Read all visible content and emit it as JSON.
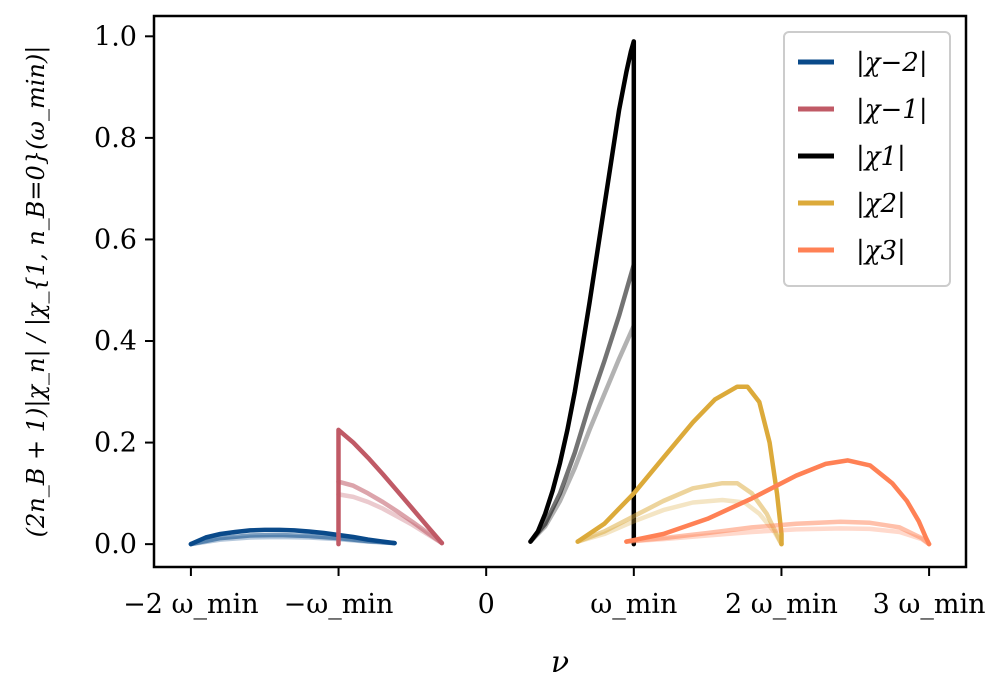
{
  "chart_data": {
    "type": "line",
    "xlabel": "ν",
    "ylabel": "(2n_B + 1)|χ_n| / |χ_{1, n_B=0}(ω_min)|",
    "xlim": [
      -2.25,
      3.25
    ],
    "ylim": [
      -0.045,
      1.04
    ],
    "x_ticks": [
      {
        "value": -2,
        "label": "−2 ω_min"
      },
      {
        "value": -1,
        "label": "−ω_min"
      },
      {
        "value": 0,
        "label": "0"
      },
      {
        "value": 1,
        "label": "ω_min"
      },
      {
        "value": 2,
        "label": "2 ω_min"
      },
      {
        "value": 3,
        "label": "3 ω_min"
      }
    ],
    "y_ticks": [
      {
        "value": 0.0,
        "label": "0.0"
      },
      {
        "value": 0.2,
        "label": "0.2"
      },
      {
        "value": 0.4,
        "label": "0.4"
      },
      {
        "value": 0.6,
        "label": "0.6"
      },
      {
        "value": 0.8,
        "label": "0.8"
      },
      {
        "value": 1.0,
        "label": "1.0"
      }
    ],
    "legend": {
      "location": "top-right",
      "entries": [
        {
          "label": "|χ−2|",
          "color": "#0a4a8a"
        },
        {
          "label": "|χ−1|",
          "color": "#c05a66"
        },
        {
          "label": "|χ1|",
          "color": "#000000"
        },
        {
          "label": "|χ2|",
          "color": "#dcaa3a"
        },
        {
          "label": "|χ3|",
          "color": "#ff8155"
        }
      ]
    },
    "series": [
      {
        "name": "chi_-2 (main)",
        "color": "#0a4a8a",
        "opacity": 1.0,
        "x": [
          -2.0,
          -1.9,
          -1.8,
          -1.7,
          -1.6,
          -1.5,
          -1.4,
          -1.3,
          -1.2,
          -1.1,
          -1.0,
          -0.9,
          -0.8,
          -0.7,
          -0.62
        ],
        "y": [
          0.0,
          0.013,
          0.02,
          0.024,
          0.027,
          0.028,
          0.028,
          0.027,
          0.025,
          0.022,
          0.018,
          0.014,
          0.009,
          0.005,
          0.002
        ]
      },
      {
        "name": "chi_-2 (mid)",
        "color": "#0a4a8a",
        "opacity": 0.55,
        "x": [
          -2.0,
          -1.8,
          -1.6,
          -1.4,
          -1.2,
          -1.0,
          -0.8,
          -0.62
        ],
        "y": [
          0.0,
          0.012,
          0.017,
          0.018,
          0.016,
          0.012,
          0.006,
          0.002
        ]
      },
      {
        "name": "chi_-2 (light)",
        "color": "#0a4a8a",
        "opacity": 0.3,
        "x": [
          -2.0,
          -1.8,
          -1.6,
          -1.4,
          -1.2,
          -1.0,
          -0.8,
          -0.62
        ],
        "y": [
          0.0,
          0.009,
          0.013,
          0.014,
          0.013,
          0.01,
          0.005,
          0.002
        ]
      },
      {
        "name": "chi_-1 (main)",
        "color": "#c05a66",
        "opacity": 1.0,
        "x": [
          -1.0,
          -1.0,
          -0.9,
          -0.8,
          -0.7,
          -0.6,
          -0.5,
          -0.4,
          -0.3
        ],
        "y": [
          0.0,
          0.225,
          0.2,
          0.17,
          0.138,
          0.104,
          0.07,
          0.036,
          0.002
        ]
      },
      {
        "name": "chi_-1 (mid)",
        "color": "#c05a66",
        "opacity": 0.55,
        "x": [
          -1.0,
          -0.9,
          -0.8,
          -0.7,
          -0.6,
          -0.5,
          -0.4,
          -0.3
        ],
        "y": [
          0.123,
          0.115,
          0.1,
          0.083,
          0.064,
          0.044,
          0.023,
          0.002
        ]
      },
      {
        "name": "chi_-1 (light)",
        "color": "#c05a66",
        "opacity": 0.32,
        "x": [
          -1.0,
          -0.9,
          -0.8,
          -0.7,
          -0.6,
          -0.5,
          -0.4,
          -0.3
        ],
        "y": [
          0.098,
          0.093,
          0.083,
          0.07,
          0.054,
          0.038,
          0.02,
          0.002
        ]
      },
      {
        "name": "chi_1 (main)",
        "color": "#000000",
        "opacity": 1.0,
        "x": [
          0.3,
          0.35,
          0.4,
          0.45,
          0.5,
          0.55,
          0.6,
          0.65,
          0.7,
          0.75,
          0.8,
          0.85,
          0.9,
          0.95,
          0.98,
          1.0,
          1.0
        ],
        "y": [
          0.005,
          0.025,
          0.06,
          0.105,
          0.16,
          0.225,
          0.3,
          0.385,
          0.475,
          0.57,
          0.665,
          0.76,
          0.855,
          0.93,
          0.97,
          0.99,
          0.0
        ]
      },
      {
        "name": "chi_1 (mid)",
        "color": "#000000",
        "opacity": 0.55,
        "x": [
          0.3,
          0.4,
          0.5,
          0.6,
          0.7,
          0.8,
          0.9,
          1.0
        ],
        "y": [
          0.005,
          0.04,
          0.1,
          0.18,
          0.275,
          0.36,
          0.45,
          0.55
        ]
      },
      {
        "name": "chi_1 (light)",
        "color": "#000000",
        "opacity": 0.3,
        "x": [
          0.3,
          0.4,
          0.5,
          0.6,
          0.7,
          0.8,
          0.9,
          1.0
        ],
        "y": [
          0.005,
          0.035,
          0.085,
          0.15,
          0.225,
          0.295,
          0.365,
          0.43
        ]
      },
      {
        "name": "chi_2 (main)",
        "color": "#dcaa3a",
        "opacity": 1.0,
        "x": [
          0.62,
          0.8,
          1.0,
          1.2,
          1.4,
          1.55,
          1.7,
          1.77,
          1.85,
          1.92,
          1.97,
          2.0,
          2.0
        ],
        "y": [
          0.005,
          0.04,
          0.1,
          0.17,
          0.24,
          0.285,
          0.31,
          0.31,
          0.28,
          0.2,
          0.1,
          0.02,
          0.0
        ]
      },
      {
        "name": "chi_2 (mid)",
        "color": "#dcaa3a",
        "opacity": 0.5,
        "x": [
          0.62,
          0.8,
          1.0,
          1.2,
          1.4,
          1.6,
          1.7,
          1.8,
          1.9,
          2.0
        ],
        "y": [
          0.005,
          0.025,
          0.055,
          0.085,
          0.11,
          0.12,
          0.12,
          0.1,
          0.06,
          0.0
        ]
      },
      {
        "name": "chi_2 (light)",
        "color": "#dcaa3a",
        "opacity": 0.3,
        "x": [
          0.62,
          0.8,
          1.0,
          1.2,
          1.4,
          1.6,
          1.75,
          1.85,
          1.95,
          2.0
        ],
        "y": [
          0.005,
          0.02,
          0.045,
          0.067,
          0.082,
          0.087,
          0.082,
          0.06,
          0.025,
          0.0
        ]
      },
      {
        "name": "chi_3 (main)",
        "color": "#ff8155",
        "opacity": 1.0,
        "x": [
          0.95,
          1.2,
          1.5,
          1.8,
          2.1,
          2.3,
          2.45,
          2.6,
          2.75,
          2.85,
          2.93,
          2.98,
          3.0
        ],
        "y": [
          0.005,
          0.02,
          0.05,
          0.09,
          0.135,
          0.158,
          0.165,
          0.155,
          0.12,
          0.085,
          0.045,
          0.012,
          0.0
        ]
      },
      {
        "name": "chi_3 (mid)",
        "color": "#ff8155",
        "opacity": 0.5,
        "x": [
          0.95,
          1.2,
          1.5,
          1.8,
          2.1,
          2.4,
          2.6,
          2.8,
          2.95,
          3.0
        ],
        "y": [
          0.005,
          0.012,
          0.022,
          0.033,
          0.04,
          0.044,
          0.042,
          0.033,
          0.012,
          0.0
        ]
      },
      {
        "name": "chi_3 (light)",
        "color": "#ff8155",
        "opacity": 0.3,
        "x": [
          0.95,
          1.2,
          1.5,
          1.8,
          2.1,
          2.4,
          2.6,
          2.8,
          2.95,
          3.0
        ],
        "y": [
          0.005,
          0.01,
          0.017,
          0.024,
          0.029,
          0.031,
          0.03,
          0.024,
          0.01,
          0.0
        ]
      }
    ]
  }
}
